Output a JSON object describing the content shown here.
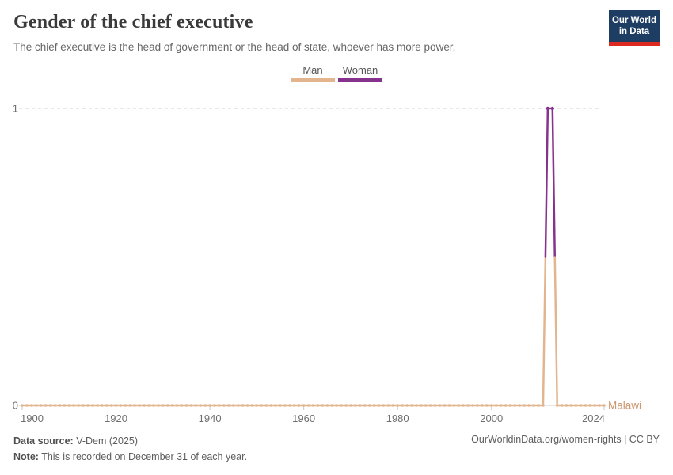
{
  "header": {
    "title": "Gender of the chief executive",
    "subtitle": "The chief executive is the head of government or the head of state, whoever has more power.",
    "logo_line1": "Our World",
    "logo_line2": "in Data"
  },
  "legend": {
    "items": [
      {
        "label": "Man",
        "color": "#E2B58F"
      },
      {
        "label": "Woman",
        "color": "#86338D"
      }
    ]
  },
  "chart_data": {
    "type": "line",
    "title": "Gender of the chief executive",
    "entity_label": "Malawi",
    "xlim": [
      1900,
      2024
    ],
    "ylim": [
      0,
      1
    ],
    "x_ticks": [
      1900,
      1920,
      1940,
      1960,
      1980,
      2000,
      2024
    ],
    "y_ticks": [
      0,
      1
    ],
    "grid": "dashed horizontal gridline at y=1, solid baseline at y=0",
    "legend_position": "top-center",
    "value_categories": {
      "0": "Man",
      "1": "Woman"
    },
    "series": [
      {
        "name": "Malawi",
        "segments": [
          {
            "from_year": 1900,
            "to_year": 2011,
            "value": 0
          },
          {
            "from_year": 2012,
            "to_year": 2013,
            "value": 1
          },
          {
            "from_year": 2014,
            "to_year": 2024,
            "value": 0
          }
        ]
      }
    ]
  },
  "colors": {
    "man": "#E2B58F",
    "woman": "#86338D",
    "entity_label": "#CE9770",
    "logo_bg": "#1D3D63",
    "logo_accent": "#DC2A20",
    "gridline": "#D2D2D2",
    "baseline": "#C8C8C8",
    "axis_text": "#6E6E6E"
  },
  "footer": {
    "source_label": "Data source:",
    "source_value": "V-Dem (2025)",
    "note_label": "Note:",
    "note_value": "This is recorded on December 31 of each year.",
    "credit": "OurWorldinData.org/women-rights | CC BY"
  }
}
